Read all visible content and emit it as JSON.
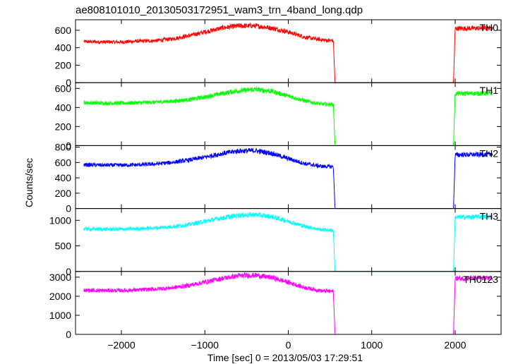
{
  "chart_data": {
    "type": "line",
    "title": "ae808101010_20130503172951_wam3_trn_4band_long.qdp",
    "xlabel": "Time [sec] 0 = 2013/05/03 17:29:51",
    "ylabel": "Counts/sec",
    "xlim": [
      -2550,
      2550
    ],
    "x_ticks": [
      -2000,
      -1000,
      0,
      1000,
      2000
    ],
    "x_tick_labels": [
      "−2000",
      "−1000",
      "0",
      "1000",
      "2000"
    ],
    "grid": false,
    "data_gap": [
      540,
      1990
    ],
    "panels": [
      {
        "label": "TH0",
        "color": "#ff0000",
        "ylim": [
          0,
          720
        ],
        "y_ticks": [
          0,
          200,
          400,
          600
        ],
        "series": [
          {
            "x": [
              -2450,
              -2200,
              -2000,
              -1800,
              -1600,
              -1400,
              -1200,
              -1000,
              -800,
              -600,
              -400,
              -200,
              0,
              200,
              400,
              540,
              560,
              1000,
              1500,
              1980,
              2000,
              2450
            ],
            "values": [
              470,
              465,
              465,
              475,
              480,
              500,
              535,
              580,
              625,
              650,
              650,
              625,
              580,
              520,
              490,
              480,
              0,
              0,
              0,
              0,
              620,
              625
            ]
          }
        ]
      },
      {
        "label": "TH1",
        "color": "#00ff00",
        "ylim": [
          0,
          660
        ],
        "y_ticks": [
          0,
          200,
          400,
          600
        ],
        "series": [
          {
            "x": [
              -2450,
              -2200,
              -2000,
              -1800,
              -1600,
              -1400,
              -1200,
              -1000,
              -800,
              -600,
              -400,
              -200,
              0,
              200,
              400,
              540,
              560,
              1000,
              1500,
              1980,
              2000,
              2450
            ],
            "values": [
              450,
              445,
              445,
              450,
              455,
              465,
              480,
              510,
              545,
              575,
              590,
              570,
              520,
              470,
              435,
              430,
              0,
              0,
              0,
              0,
              545,
              550
            ]
          }
        ]
      },
      {
        "label": "TH2",
        "color": "#0000ff",
        "ylim": [
          0,
          820
        ],
        "y_ticks": [
          0,
          200,
          400,
          600,
          800
        ],
        "series": [
          {
            "x": [
              -2450,
              -2200,
              -2000,
              -1800,
              -1600,
              -1400,
              -1200,
              -1000,
              -800,
              -600,
              -400,
              -200,
              0,
              200,
              400,
              540,
              560,
              1000,
              1500,
              1980,
              2000,
              2450
            ],
            "values": [
              570,
              565,
              565,
              570,
              580,
              600,
              630,
              670,
              715,
              750,
              755,
              720,
              650,
              585,
              550,
              545,
              0,
              0,
              0,
              0,
              700,
              705
            ]
          }
        ]
      },
      {
        "label": "TH3",
        "color": "#00ffff",
        "ylim": [
          0,
          1230
        ],
        "y_ticks": [
          0,
          500,
          1000
        ],
        "series": [
          {
            "x": [
              -2450,
              -2200,
              -2000,
              -1800,
              -1600,
              -1400,
              -1200,
              -1000,
              -800,
              -600,
              -400,
              -200,
              0,
              200,
              400,
              540,
              560,
              1000,
              1500,
              1980,
              2000,
              2450
            ],
            "values": [
              830,
              825,
              825,
              835,
              850,
              875,
              915,
              980,
              1045,
              1095,
              1110,
              1070,
              980,
              880,
              815,
              800,
              0,
              0,
              0,
              0,
              1060,
              1070
            ]
          }
        ]
      },
      {
        "label": "TH0123",
        "color": "#ff00ff",
        "ylim": [
          0,
          3300
        ],
        "y_ticks": [
          0,
          1000,
          2000,
          3000
        ],
        "series": [
          {
            "x": [
              -2450,
              -2200,
              -2000,
              -1800,
              -1600,
              -1400,
              -1200,
              -1000,
              -800,
              -600,
              -400,
              -200,
              0,
              200,
              400,
              540,
              560,
              1000,
              1500,
              1980,
              2000,
              2450
            ],
            "values": [
              2310,
              2300,
              2300,
              2330,
              2370,
              2440,
              2560,
              2740,
              2930,
              3070,
              3100,
              2980,
              2730,
              2450,
              2280,
              2250,
              0,
              0,
              0,
              0,
              2930,
              2950
            ]
          }
        ]
      }
    ]
  }
}
